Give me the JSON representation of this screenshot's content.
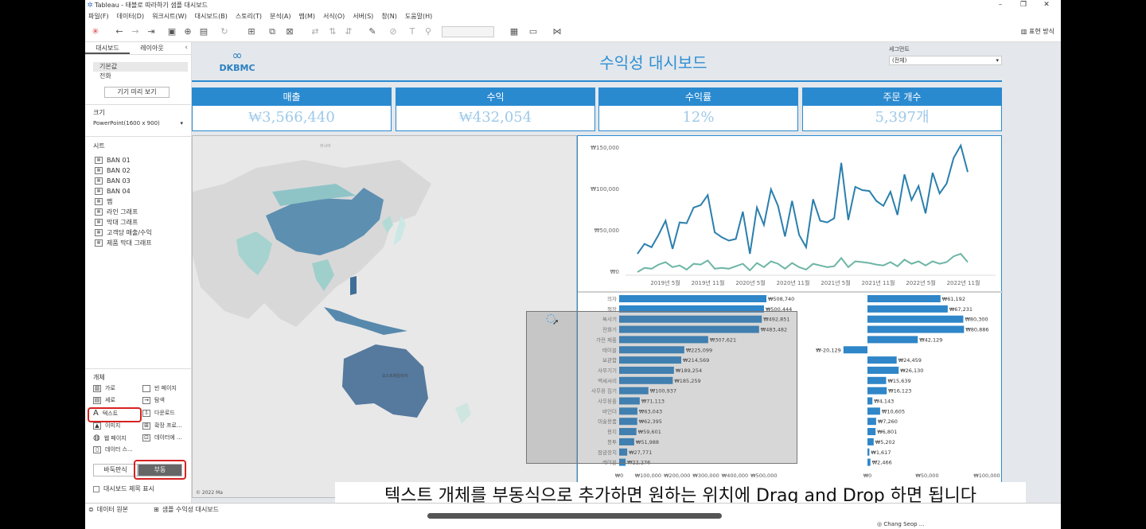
{
  "window": {
    "title": "Tableau - 태블로 따라하기 샘플 대시보드",
    "minimize": "–",
    "restore": "❐",
    "close": "✕"
  },
  "menu": [
    "파일(F)",
    "데이터(D)",
    "워크시트(W)",
    "대시보드(B)",
    "스토리(T)",
    "분석(A)",
    "맵(M)",
    "서식(O)",
    "서버(S)",
    "창(N)",
    "도움말(H)"
  ],
  "toolbar": {
    "show_me": "표현 방식"
  },
  "left_panel": {
    "tabs": [
      "대시보드",
      "레이아웃"
    ],
    "devices": [
      "기본값",
      "전화"
    ],
    "device_preview": "기기 미리 보기",
    "size_label": "크기",
    "size_value": "PowerPoint(1600 x 900)",
    "sheets_label": "시트",
    "sheets": [
      "BAN 01",
      "BAN 02",
      "BAN 03",
      "BAN 04",
      "맵",
      "라인 그래프",
      "막대 그래프",
      "고객당 매출/수익",
      "제품 막대 그래프"
    ],
    "objects_label": "개체",
    "objects": [
      "가로",
      "빈 페이지",
      "세로",
      "탐색",
      "텍스트",
      "다운로드",
      "이미지",
      "확장 프로...",
      "웹 페이지",
      "데이터에 ...",
      "데이터 스..."
    ],
    "tiled": "바둑판식",
    "floating": "부동",
    "show_title": "대시보드 제목 표시"
  },
  "dashboard": {
    "logo_text": "DKBMC",
    "title": "수익성 대시보드",
    "segment_label": "세그먼트",
    "segment_value": "(전체)",
    "kpis": [
      {
        "label": "매출",
        "value": "₩3,566,440"
      },
      {
        "label": "수익",
        "value": "₩432,054"
      },
      {
        "label": "수익률",
        "value": "12%"
      },
      {
        "label": "주문 개수",
        "value": "5,397개"
      }
    ],
    "map_labels": {
      "copyright": "© 2022 Ma"
    }
  },
  "colors": {
    "accent": "#2a8ad0",
    "bar": "#2f86c8",
    "line1": "#2a7fad",
    "line2": "#6db5a5"
  },
  "chart_data": [
    {
      "type": "line",
      "x_ticks": [
        "2019년 5월",
        "2019년 11월",
        "2020년 5월",
        "2020년 11월",
        "2021년 5월",
        "2021년 11월",
        "2022년 5월",
        "2022년 11월"
      ],
      "y_ticks": [
        "₩0",
        "₩50,000",
        "₩100,000",
        "₩150,000"
      ],
      "ylim": [
        0,
        150000
      ],
      "series": [
        {
          "values": [
            22000,
            34000,
            30000,
            45000,
            62000,
            28000,
            60000,
            59000,
            78000,
            81000,
            93000,
            48000,
            42000,
            38000,
            40000,
            73000,
            22000,
            78000,
            57000,
            100000,
            80000,
            43000,
            86000,
            45000,
            30000,
            88000,
            62000,
            60000,
            65000,
            132000,
            63000,
            103000,
            99000,
            98000,
            86000,
            80000,
            97000,
            69000,
            118000,
            87000,
            104000,
            71000,
            120000,
            95000,
            107000,
            138000,
            153000,
            121000
          ]
        },
        {
          "values": [
            0,
            5000,
            4000,
            9000,
            12000,
            6000,
            8000,
            3000,
            10000,
            9000,
            14000,
            4000,
            5000,
            4000,
            7000,
            10000,
            2000,
            11000,
            6000,
            13000,
            10000,
            4000,
            11000,
            6000,
            3000,
            10000,
            8000,
            6000,
            7000,
            17000,
            6000,
            13000,
            12000,
            11000,
            9000,
            8000,
            12000,
            7000,
            15000,
            10000,
            13000,
            8000,
            13000,
            10000,
            12000,
            19000,
            22000,
            12000
          ]
        }
      ]
    },
    {
      "type": "bar",
      "categories": [
        "의자",
        "책장",
        "복사기",
        "전화기",
        "가전 제품",
        "테이블",
        "보관함",
        "사무기기",
        "액세서리",
        "사무용 집기",
        "사무용품",
        "바인더",
        "미술용품",
        "용지",
        "봉투",
        "잠금장치",
        "레이블"
      ],
      "values": [
        508740,
        500444,
        492851,
        483482,
        307621,
        225099,
        214569,
        189254,
        185259,
        100937,
        71113,
        63043,
        62395,
        59601,
        51988,
        27771,
        22276
      ],
      "labels": [
        "₩508,740",
        "₩500,444",
        "₩492,851",
        "₩483,482",
        "₩307,621",
        "₩225,099",
        "₩214,569",
        "₩189,254",
        "₩185,259",
        "₩100,937",
        "₩71,113",
        "₩63,043",
        "₩62,395",
        "₩59,601",
        "₩51,988",
        "₩27,771",
        "₩22,276"
      ],
      "x_ticks": [
        "₩0",
        "₩100,000",
        "₩200,000",
        "₩300,000",
        "₩400,000",
        "₩500,000"
      ],
      "xlim": [
        0,
        550000
      ]
    },
    {
      "type": "bar",
      "values": [
        61192,
        67231,
        80300,
        80886,
        42129,
        -20129,
        24459,
        26130,
        15639,
        16123,
        4143,
        10605,
        7260,
        6801,
        5202,
        1617,
        2466
      ],
      "labels": [
        "₩61,192",
        "₩67,231",
        "₩80,300",
        "₩80,886",
        "₩42,129",
        "₩-20,129",
        "₩24,459",
        "₩26,130",
        "₩15,639",
        "₩16,123",
        "₩4,143",
        "₩10,605",
        "₩7,260",
        "₩6,801",
        "₩5,202",
        "₩1,617",
        "₩2,466"
      ],
      "x_ticks": [
        "₩0",
        "₩50,000",
        "₩100,000"
      ],
      "xlim": [
        -25000,
        100000
      ]
    }
  ],
  "subtitle": "텍스트 개체를 부동식으로 추가하면 원하는 위치에 Drag and Drop 하면 됩니다",
  "bottom": {
    "data_source": "데이터 원본",
    "sheet_tab": "샘플 수익성 대시보드",
    "user": "Chang Seop ..."
  }
}
